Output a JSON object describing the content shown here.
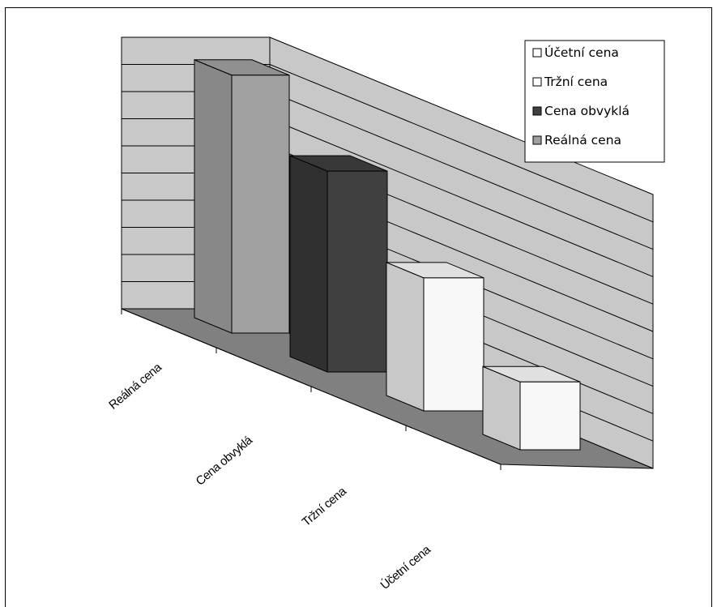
{
  "chart_data": {
    "type": "bar",
    "style": "3d-column",
    "categories": [
      "Reálná cena",
      "Cena obvyklá",
      "Tržní cena",
      "Účetní cena"
    ],
    "values": [
      9.5,
      7.4,
      4.9,
      2.5
    ],
    "ylim": [
      0,
      10
    ],
    "grid": true,
    "legend_position": "top-right",
    "legend": [
      "Účetní cena",
      "Tržní cena",
      "Cena obvyklá",
      "Reálná cena"
    ],
    "colors": {
      "Reálná cena": "#a0a0a0",
      "Cena obvyklá": "#404040",
      "Tržní cena": "#f8f8f8",
      "Účetní cena": "#f8f8f8",
      "wall": "#c8c8c8",
      "floor": "#808080"
    },
    "legend_swatches": [
      "#ffffff",
      "#ffffff",
      "#404040",
      "#a0a0a0"
    ]
  }
}
